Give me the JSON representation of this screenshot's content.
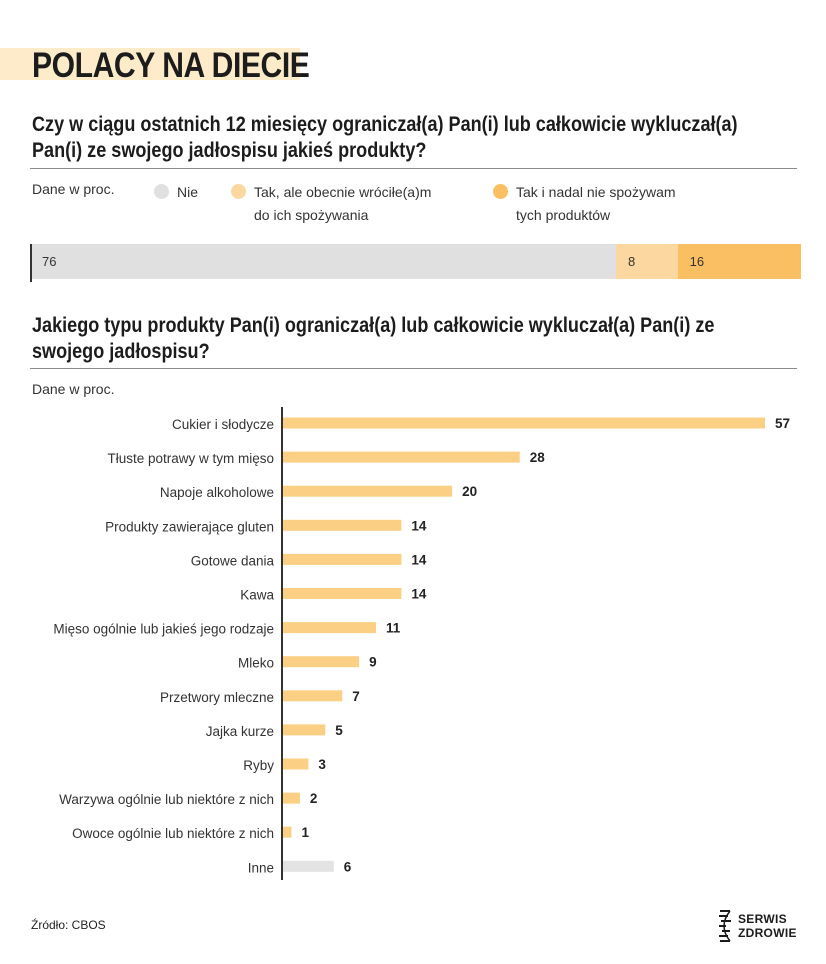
{
  "header": {
    "title": "POLACY NA DIECIE"
  },
  "section1": {
    "question": "Czy w ciągu ostatnich 12 miesięcy ograniczał(a) Pan(i) lub całkowicie  wykluczał(a) Pan(i) ze swojego jadłospisu jakieś produkty?",
    "note": "Dane w proc.",
    "legend": [
      {
        "label_line1": "Nie",
        "label_line2": "",
        "color": "#e0e0e0"
      },
      {
        "label_line1": "Tak, ale obecnie wróciłe(a)m",
        "label_line2": "do ich spożywania",
        "color": "#fdd7a0"
      },
      {
        "label_line1": "Tak i nadal nie spożywam",
        "label_line2": "tych produktów",
        "color": "#fbbf63"
      }
    ]
  },
  "section2": {
    "question": "Jakiego typu produkty Pan(i) ograniczał(a) lub całkowicie wykluczał(a) Pan(i) ze swojego jadłospisu?",
    "note": "Dane w proc."
  },
  "chart_data": [
    {
      "type": "bar",
      "orientation": "horizontal-stacked",
      "categories": [
        "Nie",
        "Tak, ale obecnie wróciłe(a)m do ich spożywania",
        "Tak i nadal nie spożywam tych produktów"
      ],
      "values": [
        76,
        8,
        16
      ],
      "colors": [
        "#e0e0e0",
        "#fdd7a0",
        "#fbbf63"
      ]
    },
    {
      "type": "bar",
      "orientation": "horizontal",
      "categories": [
        "Cukier i słodycze",
        "Tłuste potrawy w tym mięso",
        "Napoje alkoholowe",
        "Produkty zawierające gluten",
        "Gotowe dania",
        "Kawa",
        "Mięso ogólnie lub jakieś jego rodzaje",
        "Mleko",
        "Przetwory mleczne",
        "Jajka kurze",
        "Ryby",
        "Warzywa ogólnie lub niektóre z nich",
        "Owoce ogólnie lub niektóre z nich",
        "Inne"
      ],
      "values": [
        57,
        28,
        20,
        14,
        14,
        14,
        11,
        9,
        7,
        5,
        3,
        2,
        1,
        6
      ],
      "colors": [
        "#fbcf84",
        "#fbcf84",
        "#fbcf84",
        "#fbcf84",
        "#fbcf84",
        "#fbcf84",
        "#fbcf84",
        "#fbcf84",
        "#fbcf84",
        "#fbcf84",
        "#fbcf84",
        "#fbcf84",
        "#fbcf84",
        "#e3e3e3"
      ],
      "xlim": [
        0,
        57
      ]
    }
  ],
  "footer": {
    "source": "Źródło: CBOS",
    "logo_line1": "SERWIS",
    "logo_line2": "ZDROWIE"
  }
}
